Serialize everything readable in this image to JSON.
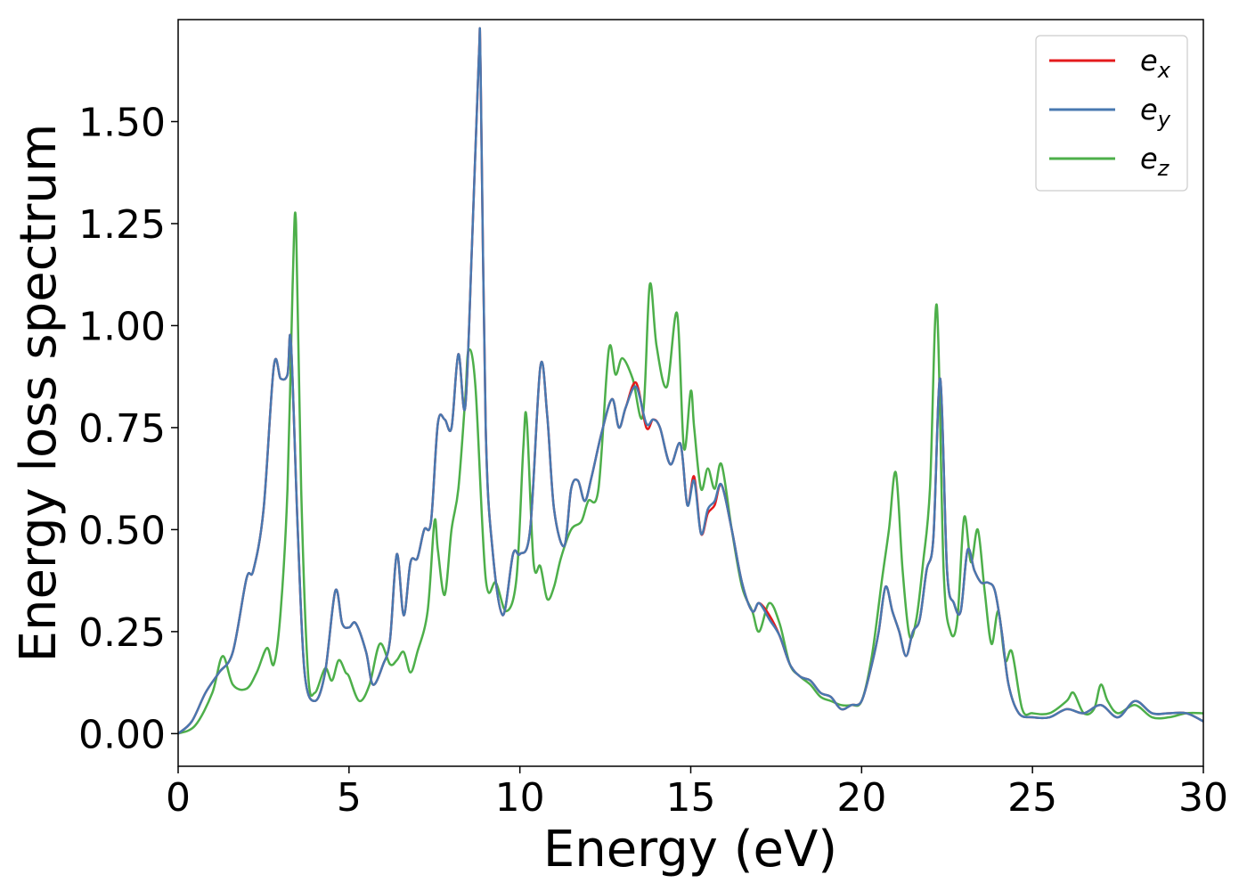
{
  "chart_data": {
    "type": "line",
    "title": "",
    "xlabel": "Energy (eV)",
    "ylabel": "Energy loss spectrum",
    "xlim": [
      0,
      30
    ],
    "ylim": [
      -0.08,
      1.75
    ],
    "xticks": [
      0,
      5,
      10,
      15,
      20,
      25,
      30
    ],
    "xtick_labels": [
      "0",
      "5",
      "10",
      "15",
      "20",
      "25",
      "30"
    ],
    "yticks": [
      0,
      0.25,
      0.5,
      0.75,
      1.0,
      1.25,
      1.5
    ],
    "ytick_labels": [
      "0.00",
      "0.25",
      "0.50",
      "0.75",
      "1.00",
      "1.25",
      "1.50"
    ],
    "grid": false,
    "legend_position": "top-right",
    "series": [
      {
        "name": "ex",
        "legend_base": "e",
        "legend_sub": "x",
        "color": "#e41a1c",
        "x": [
          0,
          0.4,
          0.8,
          1.2,
          1.6,
          2.0,
          2.2,
          2.5,
          2.8,
          3.0,
          3.2,
          3.3,
          3.5,
          3.7,
          4.0,
          4.3,
          4.6,
          4.8,
          5.0,
          5.2,
          5.5,
          5.7,
          6.0,
          6.2,
          6.4,
          6.6,
          6.8,
          7.0,
          7.2,
          7.4,
          7.6,
          7.8,
          8.0,
          8.2,
          8.4,
          8.6,
          8.8,
          8.85,
          9.0,
          9.2,
          9.5,
          9.8,
          10.0,
          10.3,
          10.6,
          10.8,
          11.0,
          11.3,
          11.5,
          11.7,
          11.9,
          12.1,
          12.4,
          12.7,
          12.9,
          13.1,
          13.4,
          13.7,
          13.9,
          14.1,
          14.4,
          14.7,
          14.9,
          15.1,
          15.3,
          15.5,
          15.7,
          15.9,
          16.2,
          16.5,
          16.8,
          17.0,
          17.3,
          17.6,
          17.9,
          18.2,
          18.5,
          18.8,
          19.1,
          19.4,
          19.7,
          20.0,
          20.3,
          20.5,
          20.7,
          20.9,
          21.1,
          21.3,
          21.5,
          21.7,
          21.9,
          22.1,
          22.3,
          22.5,
          22.7,
          22.9,
          23.1,
          23.3,
          23.5,
          23.7,
          23.9,
          24.1,
          24.3,
          24.6,
          25.0,
          25.5,
          26.0,
          26.5,
          27.0,
          27.5,
          28.0,
          28.5,
          29.0,
          29.5,
          30.0
        ],
        "y": [
          0.0,
          0.03,
          0.1,
          0.15,
          0.2,
          0.38,
          0.4,
          0.55,
          0.9,
          0.87,
          0.88,
          0.96,
          0.5,
          0.15,
          0.08,
          0.15,
          0.35,
          0.27,
          0.26,
          0.27,
          0.2,
          0.12,
          0.17,
          0.23,
          0.44,
          0.29,
          0.42,
          0.43,
          0.5,
          0.52,
          0.76,
          0.77,
          0.75,
          0.93,
          0.8,
          1.2,
          1.66,
          1.63,
          0.75,
          0.45,
          0.29,
          0.44,
          0.44,
          0.5,
          0.9,
          0.78,
          0.55,
          0.46,
          0.6,
          0.62,
          0.57,
          0.63,
          0.74,
          0.82,
          0.75,
          0.8,
          0.86,
          0.75,
          0.77,
          0.75,
          0.66,
          0.71,
          0.56,
          0.63,
          0.49,
          0.54,
          0.56,
          0.61,
          0.5,
          0.37,
          0.3,
          0.32,
          0.29,
          0.24,
          0.17,
          0.14,
          0.13,
          0.1,
          0.09,
          0.06,
          0.07,
          0.08,
          0.17,
          0.25,
          0.36,
          0.3,
          0.25,
          0.19,
          0.25,
          0.28,
          0.4,
          0.48,
          0.87,
          0.4,
          0.32,
          0.3,
          0.45,
          0.4,
          0.37,
          0.37,
          0.35,
          0.25,
          0.12,
          0.05,
          0.04,
          0.04,
          0.06,
          0.05,
          0.07,
          0.04,
          0.08,
          0.05,
          0.05,
          0.05,
          0.03
        ]
      },
      {
        "name": "ey",
        "legend_base": "e",
        "legend_sub": "y",
        "color": "#4878b0",
        "x": [
          0,
          0.4,
          0.8,
          1.2,
          1.6,
          2.0,
          2.2,
          2.5,
          2.8,
          3.0,
          3.2,
          3.3,
          3.5,
          3.7,
          4.0,
          4.3,
          4.6,
          4.8,
          5.0,
          5.2,
          5.5,
          5.7,
          6.0,
          6.2,
          6.4,
          6.6,
          6.8,
          7.0,
          7.2,
          7.4,
          7.6,
          7.8,
          8.0,
          8.2,
          8.4,
          8.6,
          8.8,
          8.85,
          9.0,
          9.2,
          9.5,
          9.8,
          10.0,
          10.3,
          10.6,
          10.8,
          11.0,
          11.3,
          11.5,
          11.7,
          11.9,
          12.1,
          12.4,
          12.7,
          12.9,
          13.1,
          13.4,
          13.7,
          13.9,
          14.1,
          14.4,
          14.7,
          14.9,
          15.1,
          15.3,
          15.5,
          15.7,
          15.9,
          16.2,
          16.5,
          16.8,
          17.0,
          17.3,
          17.6,
          17.9,
          18.2,
          18.5,
          18.8,
          19.1,
          19.4,
          19.7,
          20.0,
          20.3,
          20.5,
          20.7,
          20.9,
          21.1,
          21.3,
          21.5,
          21.7,
          21.9,
          22.1,
          22.3,
          22.5,
          22.7,
          22.9,
          23.1,
          23.3,
          23.5,
          23.7,
          23.9,
          24.1,
          24.3,
          24.6,
          25.0,
          25.5,
          26.0,
          26.5,
          27.0,
          27.5,
          28.0,
          28.5,
          29.0,
          29.5,
          30.0
        ],
        "y": [
          0.0,
          0.03,
          0.1,
          0.15,
          0.2,
          0.38,
          0.4,
          0.55,
          0.9,
          0.87,
          0.88,
          0.96,
          0.5,
          0.15,
          0.08,
          0.15,
          0.35,
          0.27,
          0.26,
          0.27,
          0.2,
          0.12,
          0.17,
          0.23,
          0.44,
          0.29,
          0.42,
          0.43,
          0.5,
          0.52,
          0.76,
          0.77,
          0.75,
          0.93,
          0.8,
          1.2,
          1.66,
          1.63,
          0.75,
          0.45,
          0.29,
          0.44,
          0.44,
          0.5,
          0.9,
          0.78,
          0.55,
          0.46,
          0.6,
          0.62,
          0.57,
          0.63,
          0.74,
          0.82,
          0.75,
          0.8,
          0.85,
          0.76,
          0.77,
          0.75,
          0.66,
          0.71,
          0.56,
          0.62,
          0.49,
          0.55,
          0.57,
          0.61,
          0.5,
          0.37,
          0.3,
          0.32,
          0.28,
          0.24,
          0.17,
          0.14,
          0.13,
          0.1,
          0.09,
          0.06,
          0.07,
          0.08,
          0.17,
          0.25,
          0.36,
          0.3,
          0.25,
          0.19,
          0.25,
          0.28,
          0.4,
          0.48,
          0.87,
          0.4,
          0.32,
          0.3,
          0.45,
          0.4,
          0.37,
          0.37,
          0.35,
          0.25,
          0.12,
          0.05,
          0.04,
          0.04,
          0.06,
          0.05,
          0.07,
          0.04,
          0.08,
          0.05,
          0.05,
          0.05,
          0.03
        ]
      },
      {
        "name": "ez",
        "legend_base": "e",
        "legend_sub": "z",
        "color": "#4daf4a",
        "x": [
          0,
          0.5,
          1.0,
          1.3,
          1.6,
          2.0,
          2.3,
          2.6,
          2.8,
          3.0,
          3.2,
          3.35,
          3.45,
          3.6,
          3.8,
          4.0,
          4.3,
          4.5,
          4.7,
          4.9,
          5.0,
          5.3,
          5.6,
          5.9,
          6.2,
          6.4,
          6.6,
          6.8,
          7.0,
          7.3,
          7.5,
          7.6,
          7.8,
          8.0,
          8.2,
          8.4,
          8.5,
          8.7,
          9.0,
          9.3,
          9.6,
          9.9,
          10.1,
          10.2,
          10.4,
          10.6,
          10.8,
          11.0,
          11.2,
          11.5,
          11.8,
          12.0,
          12.3,
          12.6,
          12.8,
          13.0,
          13.3,
          13.6,
          13.8,
          14.0,
          14.3,
          14.6,
          14.8,
          15.0,
          15.1,
          15.3,
          15.5,
          15.7,
          15.9,
          16.2,
          16.5,
          16.8,
          17.0,
          17.3,
          17.6,
          17.9,
          18.2,
          18.5,
          18.8,
          19.1,
          19.4,
          19.7,
          20.0,
          20.3,
          20.6,
          20.8,
          21.0,
          21.2,
          21.4,
          21.6,
          21.8,
          22.0,
          22.2,
          22.4,
          22.6,
          22.8,
          23.0,
          23.2,
          23.4,
          23.6,
          23.8,
          24.0,
          24.2,
          24.4,
          24.7,
          25.0,
          25.5,
          26.0,
          26.2,
          26.5,
          26.8,
          27.0,
          27.2,
          27.5,
          28.0,
          28.5,
          29.0,
          29.5,
          30.0
        ],
        "y": [
          0.0,
          0.02,
          0.1,
          0.19,
          0.12,
          0.11,
          0.15,
          0.21,
          0.17,
          0.3,
          0.6,
          1.1,
          1.25,
          0.6,
          0.15,
          0.1,
          0.16,
          0.13,
          0.18,
          0.15,
          0.14,
          0.08,
          0.12,
          0.22,
          0.17,
          0.18,
          0.2,
          0.15,
          0.2,
          0.3,
          0.52,
          0.45,
          0.34,
          0.5,
          0.6,
          0.82,
          0.94,
          0.85,
          0.38,
          0.37,
          0.3,
          0.38,
          0.7,
          0.77,
          0.42,
          0.41,
          0.33,
          0.36,
          0.43,
          0.5,
          0.52,
          0.57,
          0.6,
          0.94,
          0.88,
          0.92,
          0.87,
          0.78,
          1.1,
          0.95,
          0.85,
          1.03,
          0.7,
          0.84,
          0.75,
          0.6,
          0.65,
          0.6,
          0.66,
          0.5,
          0.36,
          0.3,
          0.25,
          0.32,
          0.27,
          0.17,
          0.14,
          0.12,
          0.09,
          0.08,
          0.07,
          0.07,
          0.08,
          0.19,
          0.38,
          0.5,
          0.64,
          0.4,
          0.24,
          0.28,
          0.42,
          0.6,
          1.05,
          0.4,
          0.25,
          0.28,
          0.53,
          0.42,
          0.5,
          0.35,
          0.22,
          0.3,
          0.18,
          0.2,
          0.06,
          0.05,
          0.05,
          0.08,
          0.1,
          0.05,
          0.06,
          0.12,
          0.08,
          0.05,
          0.07,
          0.04,
          0.04,
          0.05,
          0.05
        ]
      }
    ]
  }
}
